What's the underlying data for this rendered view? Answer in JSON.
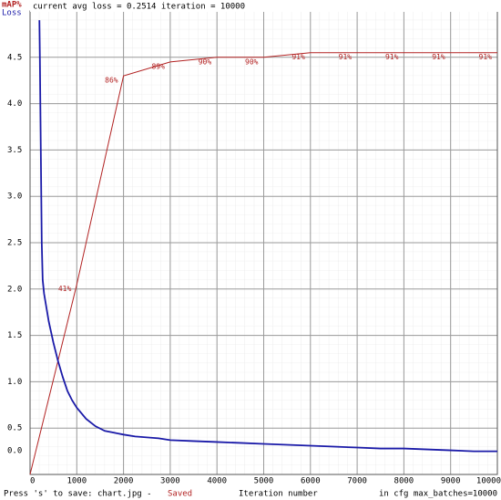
{
  "chart_data": {
    "type": "line",
    "title": "current avg loss = 0.2514    iteration = 10000",
    "xlabel": "Iteration number",
    "annotations": {
      "save_prompt": "Press 's' to save: chart.jpg -",
      "save_status": "Saved",
      "max_batches": "in cfg max_batches=10000"
    },
    "xlim": [
      0,
      10000
    ],
    "xticks": [
      0,
      1000,
      2000,
      3000,
      4000,
      5000,
      6000,
      7000,
      8000,
      9000,
      10000
    ],
    "ylim": [
      0,
      5
    ],
    "yticks": [
      {
        "value": 0,
        "label": "0.0"
      },
      0.5,
      {
        "value": 1,
        "label": "1.0"
      },
      1.5,
      {
        "value": 2,
        "label": "2.0"
      },
      2.5,
      {
        "value": 3,
        "label": "3.0"
      },
      3.5,
      {
        "value": 4,
        "label": "4.0"
      },
      4.5
    ],
    "y2lim": [
      0,
      100
    ],
    "grid": true,
    "series": [
      {
        "name": "mAP%",
        "color": "#b22222",
        "axis": "y2",
        "x": [
          0,
          1000,
          2000,
          3000,
          4000,
          5000,
          6000,
          7000,
          8000,
          9000,
          10000
        ],
        "values": [
          0,
          41,
          86,
          89,
          90,
          90,
          91,
          91,
          91,
          91,
          91
        ],
        "value_labels": [
          null,
          "41%",
          "86%",
          "89%",
          "90%",
          "90%",
          "91%",
          "91%",
          "91%",
          "91%",
          "91%"
        ]
      },
      {
        "name": "Loss",
        "color": "#1a1aa8",
        "x": [
          200,
          210,
          220,
          230,
          240,
          250,
          270,
          300,
          350,
          400,
          500,
          600,
          700,
          800,
          900,
          1000,
          1200,
          1400,
          1600,
          1800,
          2000,
          2250,
          2500,
          2750,
          3000,
          3500,
          4000,
          4500,
          5000,
          5500,
          6000,
          6500,
          7000,
          7500,
          8000,
          8500,
          9000,
          9500,
          10000
        ],
        "values": [
          4.9,
          4.5,
          4.0,
          3.5,
          3.0,
          2.5,
          2.1,
          1.95,
          1.8,
          1.65,
          1.42,
          1.22,
          1.05,
          0.9,
          0.8,
          0.72,
          0.6,
          0.52,
          0.47,
          0.45,
          0.43,
          0.41,
          0.4,
          0.39,
          0.37,
          0.36,
          0.35,
          0.34,
          0.33,
          0.32,
          0.31,
          0.3,
          0.29,
          0.28,
          0.28,
          0.27,
          0.26,
          0.25,
          0.25
        ]
      }
    ]
  }
}
